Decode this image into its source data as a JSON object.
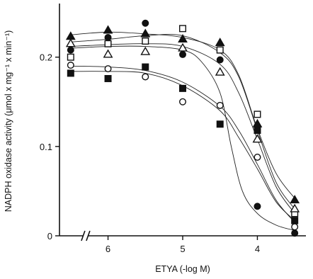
{
  "chart_data": {
    "type": "scatter",
    "title": "",
    "xlabel": "ETYA (-log M)",
    "ylabel": "NADPH oxidase activity (μmol x mg⁻¹ x min⁻¹)",
    "x_reversed": true,
    "x_break": true,
    "xlim": [
      6.65,
      3.35
    ],
    "ylim": [
      0,
      0.26
    ],
    "x_ticks": [
      6,
      5,
      4
    ],
    "x_tick_labels": [
      "6",
      "5",
      "4"
    ],
    "y_ticks": [
      0,
      0.1,
      0.2
    ],
    "y_tick_labels": [
      "0",
      "0.1",
      "0.2"
    ],
    "grid": false,
    "legend": "none",
    "series": [
      {
        "marker": "filled-triangle",
        "points": [
          [
            6.5,
            0.223
          ],
          [
            6.0,
            0.23
          ],
          [
            5.5,
            0.226
          ],
          [
            5.0,
            0.22
          ],
          [
            4.5,
            0.216
          ],
          [
            4.0,
            0.125
          ],
          [
            3.5,
            0.04
          ]
        ]
      },
      {
        "marker": "open-square",
        "points": [
          [
            6.5,
            0.2
          ],
          [
            6.0,
            0.215
          ],
          [
            5.5,
            0.218
          ],
          [
            5.0,
            0.232
          ],
          [
            4.5,
            0.208
          ],
          [
            4.0,
            0.136
          ],
          [
            3.5,
            0.025
          ]
        ]
      },
      {
        "marker": "open-triangle",
        "points": [
          [
            6.5,
            0.215
          ],
          [
            6.0,
            0.203
          ],
          [
            5.5,
            0.206
          ],
          [
            5.0,
            0.21
          ],
          [
            4.5,
            0.183
          ],
          [
            4.0,
            0.108
          ],
          [
            3.5,
            0.03
          ]
        ]
      },
      {
        "marker": "filled-circle",
        "points": [
          [
            6.5,
            0.208
          ],
          [
            6.0,
            0.222
          ],
          [
            5.5,
            0.238
          ],
          [
            5.0,
            0.203
          ],
          [
            4.5,
            0.197
          ],
          [
            4.0,
            0.033
          ],
          [
            3.5,
            0.003
          ]
        ]
      },
      {
        "marker": "open-circle",
        "points": [
          [
            6.5,
            0.191
          ],
          [
            6.0,
            0.187
          ],
          [
            5.5,
            0.178
          ],
          [
            5.0,
            0.15
          ],
          [
            4.5,
            0.146
          ],
          [
            4.0,
            0.088
          ],
          [
            3.5,
            0.01
          ]
        ]
      },
      {
        "marker": "filled-square",
        "points": [
          [
            6.5,
            0.182
          ],
          [
            6.0,
            0.176
          ],
          [
            5.5,
            0.189
          ],
          [
            5.0,
            0.165
          ],
          [
            4.5,
            0.125
          ],
          [
            4.0,
            0.118
          ],
          [
            3.5,
            0.017
          ]
        ]
      }
    ],
    "curves": [
      {
        "points": [
          [
            6.5,
            0.225
          ],
          [
            6.0,
            0.228
          ],
          [
            5.5,
            0.226
          ],
          [
            5.0,
            0.222
          ],
          [
            4.5,
            0.208
          ],
          [
            4.25,
            0.18
          ],
          [
            4.0,
            0.12
          ],
          [
            3.75,
            0.07
          ],
          [
            3.5,
            0.042
          ]
        ]
      },
      {
        "points": [
          [
            6.5,
            0.217
          ],
          [
            6.0,
            0.22
          ],
          [
            5.5,
            0.224
          ],
          [
            5.0,
            0.224
          ],
          [
            4.5,
            0.205
          ],
          [
            4.25,
            0.178
          ],
          [
            4.0,
            0.118
          ],
          [
            3.75,
            0.06
          ],
          [
            3.5,
            0.03
          ]
        ]
      },
      {
        "points": [
          [
            6.5,
            0.212
          ],
          [
            6.0,
            0.214
          ],
          [
            5.5,
            0.215
          ],
          [
            5.0,
            0.212
          ],
          [
            4.5,
            0.192
          ],
          [
            4.25,
            0.16
          ],
          [
            4.0,
            0.108
          ],
          [
            3.75,
            0.055
          ],
          [
            3.5,
            0.025
          ]
        ]
      },
      {
        "points": [
          [
            6.5,
            0.21
          ],
          [
            6.0,
            0.212
          ],
          [
            5.5,
            0.212
          ],
          [
            5.0,
            0.208
          ],
          [
            4.75,
            0.195
          ],
          [
            4.5,
            0.16
          ],
          [
            4.35,
            0.1
          ],
          [
            4.2,
            0.05
          ],
          [
            4.0,
            0.025
          ],
          [
            3.75,
            0.012
          ],
          [
            3.5,
            0.006
          ]
        ]
      },
      {
        "points": [
          [
            6.5,
            0.19
          ],
          [
            6.0,
            0.189
          ],
          [
            5.5,
            0.185
          ],
          [
            5.0,
            0.172
          ],
          [
            4.5,
            0.145
          ],
          [
            4.25,
            0.118
          ],
          [
            4.0,
            0.08
          ],
          [
            3.75,
            0.04
          ],
          [
            3.5,
            0.015
          ]
        ]
      },
      {
        "points": [
          [
            6.5,
            0.184
          ],
          [
            6.0,
            0.184
          ],
          [
            5.5,
            0.182
          ],
          [
            5.0,
            0.168
          ],
          [
            4.5,
            0.14
          ],
          [
            4.25,
            0.11
          ],
          [
            4.0,
            0.075
          ],
          [
            3.75,
            0.038
          ],
          [
            3.5,
            0.017
          ]
        ]
      }
    ]
  }
}
